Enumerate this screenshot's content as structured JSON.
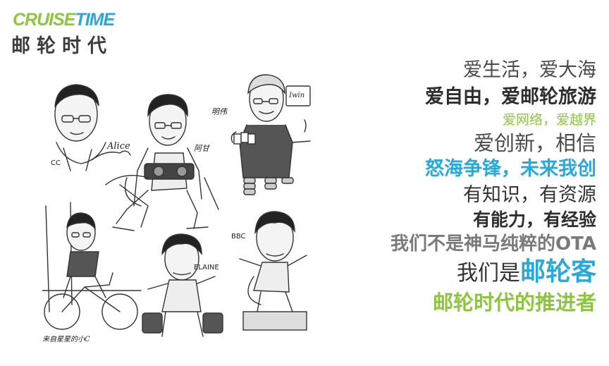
{
  "logo": {
    "en_part1": "CRUISE",
    "en_part2": "TIME",
    "cn": "邮轮时代",
    "colors": {
      "green": "#8cc63f",
      "blue": "#2aa8d8"
    }
  },
  "illustration": {
    "captions": {
      "cc": "CC",
      "cc_sign": "Alice",
      "age": "阿甘",
      "mingwei": "明伟",
      "mingwei_card": "Iwin",
      "elaine": "ELAINE",
      "bbc": "BBC",
      "xiaoc": "来自星星的小C"
    }
  },
  "slogans": {
    "l1": "爱生活，爱大海",
    "l2": "爱自由，爱邮轮旅游",
    "l3": "爱网络，爱越界",
    "l4": "爱创新，相信",
    "l5": "怒海争锋，未来我创",
    "l6": "有知识，有资源",
    "l7": "有能力，有经验",
    "l8": "我们不是神马纯粹的OTA",
    "l9_prefix": "我们是",
    "l9_highlight": "邮轮客",
    "l10": "邮轮时代的推进者"
  }
}
